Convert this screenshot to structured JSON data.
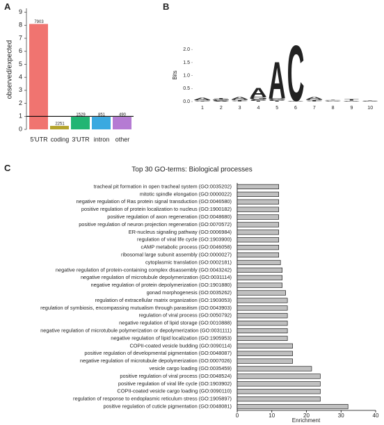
{
  "chart_data": [
    {
      "type": "bar",
      "panel_label": "A",
      "ylabel": "observed/expected",
      "categories": [
        "5'UTR",
        "coding",
        "3'UTR",
        "intron",
        "other"
      ],
      "values": [
        8.1,
        0.27,
        0.96,
        0.96,
        0.96
      ],
      "counts": [
        7903,
        2251,
        1529,
        851,
        490
      ],
      "colors": [
        "#f07470",
        "#b5a42c",
        "#22b573",
        "#3aa9e0",
        "#b57bd3"
      ],
      "reference_line": 1,
      "ylim": [
        0,
        9.3
      ],
      "yticks": [
        0,
        1,
        2,
        3,
        4,
        5,
        6,
        7,
        8,
        9
      ]
    },
    {
      "type": "logo",
      "panel_label": "B",
      "ylabel": "Bits",
      "categories": [
        "1",
        "2",
        "3",
        "4",
        "5",
        "6",
        "7",
        "8",
        "9",
        "10"
      ],
      "series": [
        {
          "name": "A",
          "color": "#22a04a",
          "values": [
            0.08,
            0.03,
            0.08,
            0.35,
            1.45,
            0.01,
            0.08,
            0.02,
            0.01,
            0.01
          ]
        },
        {
          "name": "C",
          "color": "#1f5fa8",
          "values": [
            0.02,
            0.03,
            0.02,
            0.05,
            0.05,
            2.2,
            0.02,
            0.02,
            0.01,
            0.01
          ]
        },
        {
          "name": "G",
          "color": "#f0a020",
          "values": [
            0.03,
            0.03,
            0.04,
            0.1,
            0.05,
            0.01,
            0.04,
            0.02,
            0.02,
            0.01
          ]
        },
        {
          "name": "T",
          "color": "#d0302a",
          "values": [
            0.02,
            0.03,
            0.03,
            0.03,
            0.03,
            0.01,
            0.03,
            0.02,
            0.05,
            0.01
          ]
        }
      ],
      "ylim": [
        0,
        2.3
      ],
      "yticks": [
        {
          "value": 0,
          "label": "0.0"
        },
        {
          "value": 0.5,
          "label": "0.5"
        },
        {
          "value": 1,
          "label": "1.0"
        },
        {
          "value": 1.5,
          "label": "1.5"
        },
        {
          "value": 2,
          "label": "2.0"
        }
      ]
    },
    {
      "type": "hbar",
      "panel_label": "C",
      "title": "Top 30 GO-terms: Biological processes",
      "xlabel": "Enrichment",
      "color": "#c0c0c0",
      "categories": [
        "tracheal pit formation in open tracheal system (GO:0035202)",
        "mitotic spindle elongation (GO:0000022)",
        "negative regulation of Ras protein signal transduction (GO:0046580)",
        "positive regulation of protein localization to nucleus (GO:1900182)",
        "positive regulation of axon regeneration (GO:0048680)",
        "positive regulation of neuron projection regeneration (GO:0070572)",
        "ER-nucleus signaling pathway (GO:0006984)",
        "regulation of viral life cycle (GO:1903900)",
        "cAMP metabolic process (GO:0046058)",
        "ribosomal large subunit assembly (GO:0000027)",
        "cytoplasmic translation (GO:0002181)",
        "negative regulation of protein-containing complex disassembly (GO:0043242)",
        "negative regulation of microtubule depolymerization (GO:0031114)",
        "negative regulation of protein depolymerization (GO:1901880)",
        "gonad morphogenesis (GO:0035262)",
        "regulation of extracellular matrix organization (GO:1903053)",
        "regulation of symbiosis, encompassing mutualism through parasitism (GO:0043903)",
        "regulation of viral process (GO:0050792)",
        "negative regulation of lipid storage (GO:0010888)",
        "negative regulation of microtubule polymerization or depolymerization (GO:0031111)",
        "negative regulation of lipid localization (GO:1905953)",
        "COPII-coated vesicle budding (GO:0090114)",
        "positive regulation of developmental pigmentation (GO:0048087)",
        "negative regulation of microtubule depolymerization (GO:0007026)",
        "vesicle cargo loading (GO:0035459)",
        "positive regulation of viral process (GO:0048524)",
        "positive regulation of viral life cycle (GO:1903902)",
        "COPII-coated vesicle cargo loading (GO:0090110)",
        "regulation of response to endoplasmic reticulum stress (GO:1905897)",
        "positive regulation of cuticle pigmentation (GO:0048081)"
      ],
      "values": [
        12,
        12,
        12,
        12,
        12,
        12,
        12,
        12,
        12,
        12,
        12.5,
        13,
        13,
        13,
        14,
        14.5,
        14.5,
        14.5,
        14.5,
        14.5,
        14.5,
        16,
        16,
        16,
        21.5,
        24,
        24,
        24,
        24,
        32
      ],
      "xlim": [
        0,
        40
      ],
      "xticks": [
        0,
        10,
        20,
        30,
        40
      ]
    }
  ]
}
